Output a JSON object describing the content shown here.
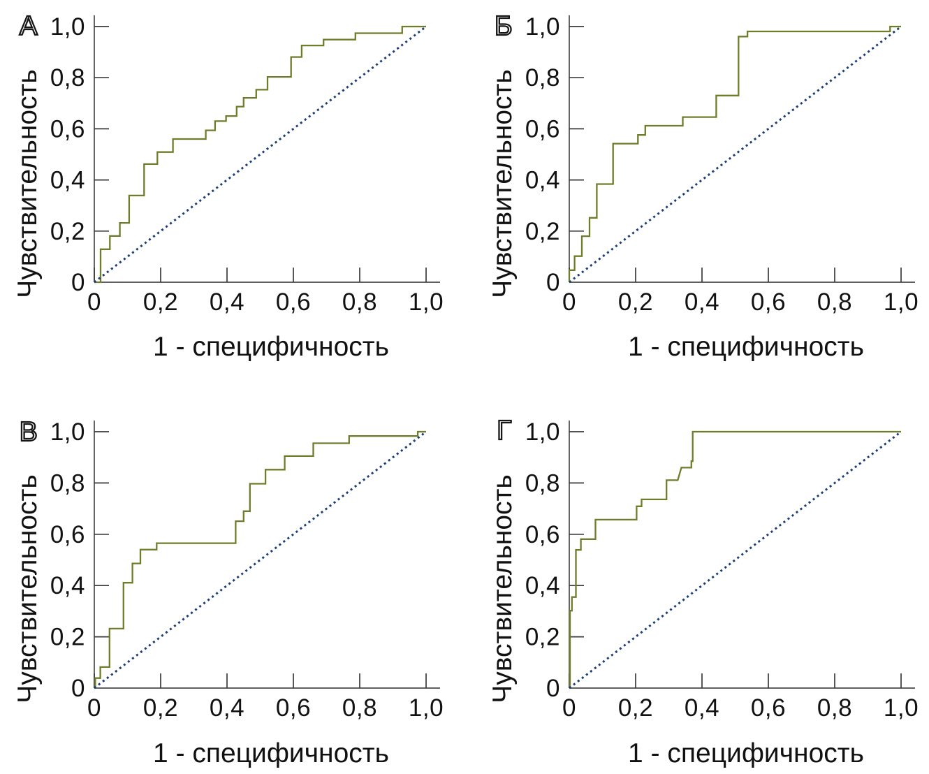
{
  "figure": {
    "description": "Four ROC curve panels in a 2x2 grid, each with a stepped ROC curve and a dotted diagonal reference line",
    "background": "#ffffff"
  },
  "colors": {
    "roc_curve": "#6e7d2a",
    "reference_line": "#1c3e76",
    "axis_line": "#4a4a4a",
    "tick_mark": "#3a3a3a",
    "text": "#111111"
  },
  "panels": [
    {
      "letter": "А",
      "x_label": "1 - специфичность",
      "y_label": "Чувствительность"
    },
    {
      "letter": "Б",
      "x_label": "1 - специфичность",
      "y_label": "Чувствительность"
    },
    {
      "letter": "В",
      "x_label": "1 - специфичность",
      "y_label": "Чувствительность"
    },
    {
      "letter": "Г",
      "x_label": "1 - специфичность",
      "y_label": "Чувствительность"
    }
  ],
  "chart_data": [
    {
      "panel": "А",
      "type": "line",
      "subtype": "roc-step",
      "xlabel": "1 - специфичность",
      "ylabel": "Чувствительность",
      "xlim": [
        0,
        1
      ],
      "ylim": [
        0,
        1
      ],
      "xticks": [
        0,
        0.2,
        0.4,
        0.6,
        0.8,
        1.0
      ],
      "yticks": [
        0,
        0.2,
        0.4,
        0.6,
        0.8,
        1.0
      ],
      "xtick_labels": [
        "0",
        "0,2",
        "0,4",
        "0,6",
        "0,8",
        "1,0"
      ],
      "ytick_labels": [
        "0",
        "0,2",
        "0,4",
        "0,6",
        "0,8",
        "1,0"
      ],
      "grid": false,
      "legend": false,
      "series": [
        {
          "name": "roc-curve",
          "style": "solid",
          "points": [
            [
              0,
              0
            ],
            [
              0.019,
              0
            ],
            [
              0.019,
              0.129
            ],
            [
              0.047,
              0.129
            ],
            [
              0.047,
              0.181
            ],
            [
              0.077,
              0.181
            ],
            [
              0.077,
              0.232
            ],
            [
              0.105,
              0.232
            ],
            [
              0.105,
              0.339
            ],
            [
              0.15,
              0.339
            ],
            [
              0.15,
              0.462
            ],
            [
              0.19,
              0.462
            ],
            [
              0.19,
              0.509
            ],
            [
              0.237,
              0.509
            ],
            [
              0.237,
              0.56
            ],
            [
              0.336,
              0.56
            ],
            [
              0.336,
              0.594
            ],
            [
              0.364,
              0.594
            ],
            [
              0.364,
              0.63
            ],
            [
              0.397,
              0.63
            ],
            [
              0.397,
              0.65
            ],
            [
              0.429,
              0.65
            ],
            [
              0.429,
              0.687
            ],
            [
              0.45,
              0.687
            ],
            [
              0.45,
              0.721
            ],
            [
              0.488,
              0.721
            ],
            [
              0.488,
              0.753
            ],
            [
              0.522,
              0.753
            ],
            [
              0.522,
              0.803
            ],
            [
              0.593,
              0.803
            ],
            [
              0.593,
              0.881
            ],
            [
              0.625,
              0.881
            ],
            [
              0.625,
              0.926
            ],
            [
              0.691,
              0.926
            ],
            [
              0.691,
              0.949
            ],
            [
              0.787,
              0.949
            ],
            [
              0.787,
              0.974
            ],
            [
              0.928,
              0.974
            ],
            [
              0.928,
              1.0
            ],
            [
              1.0,
              1.0
            ]
          ]
        },
        {
          "name": "reference-diagonal",
          "style": "dotted",
          "points": [
            [
              0,
              0
            ],
            [
              1,
              1
            ]
          ]
        }
      ]
    },
    {
      "panel": "Б",
      "type": "line",
      "subtype": "roc-step",
      "xlabel": "1 - специфичность",
      "ylabel": "Чувствительность",
      "xlim": [
        0,
        1
      ],
      "ylim": [
        0,
        1
      ],
      "xticks": [
        0,
        0.2,
        0.4,
        0.6,
        0.8,
        1.0
      ],
      "yticks": [
        0,
        0.2,
        0.4,
        0.6,
        0.8,
        1.0
      ],
      "xtick_labels": [
        "0",
        "0,2",
        "0,4",
        "0,6",
        "0,8",
        "1,0"
      ],
      "ytick_labels": [
        "0",
        "0,2",
        "0,4",
        "0,6",
        "0,8",
        "1,0"
      ],
      "grid": false,
      "legend": false,
      "series": [
        {
          "name": "roc-curve",
          "style": "solid",
          "points": [
            [
              0,
              0
            ],
            [
              0,
              0.047
            ],
            [
              0.016,
              0.047
            ],
            [
              0.016,
              0.102
            ],
            [
              0.038,
              0.102
            ],
            [
              0.038,
              0.18
            ],
            [
              0.061,
              0.18
            ],
            [
              0.061,
              0.252
            ],
            [
              0.083,
              0.252
            ],
            [
              0.083,
              0.384
            ],
            [
              0.132,
              0.384
            ],
            [
              0.132,
              0.542
            ],
            [
              0.207,
              0.542
            ],
            [
              0.207,
              0.576
            ],
            [
              0.229,
              0.576
            ],
            [
              0.229,
              0.612
            ],
            [
              0.342,
              0.612
            ],
            [
              0.342,
              0.646
            ],
            [
              0.443,
              0.646
            ],
            [
              0.443,
              0.73
            ],
            [
              0.51,
              0.73
            ],
            [
              0.51,
              0.961
            ],
            [
              0.537,
              0.961
            ],
            [
              0.537,
              0.981
            ],
            [
              0.967,
              0.981
            ],
            [
              0.967,
              1.0
            ],
            [
              1.0,
              1.0
            ]
          ]
        },
        {
          "name": "reference-diagonal",
          "style": "dotted",
          "points": [
            [
              0,
              0
            ],
            [
              1,
              1
            ]
          ]
        }
      ]
    },
    {
      "panel": "В",
      "type": "line",
      "subtype": "roc-step",
      "xlabel": "1 - специфичность",
      "ylabel": "Чувствительность",
      "xlim": [
        0,
        1
      ],
      "ylim": [
        0,
        1
      ],
      "xticks": [
        0,
        0.2,
        0.4,
        0.6,
        0.8,
        1.0
      ],
      "yticks": [
        0,
        0.2,
        0.4,
        0.6,
        0.8,
        1.0
      ],
      "xtick_labels": [
        "0",
        "0,2",
        "0,4",
        "0,6",
        "0,8",
        "1,0"
      ],
      "ytick_labels": [
        "0",
        "0,2",
        "0,4",
        "0,6",
        "0,8",
        "1,0"
      ],
      "grid": false,
      "legend": false,
      "series": [
        {
          "name": "roc-curve",
          "style": "solid",
          "points": [
            [
              0,
              0
            ],
            [
              0.003,
              0
            ],
            [
              0.003,
              0.039
            ],
            [
              0.018,
              0.039
            ],
            [
              0.018,
              0.082
            ],
            [
              0.046,
              0.082
            ],
            [
              0.046,
              0.232
            ],
            [
              0.088,
              0.232
            ],
            [
              0.088,
              0.411
            ],
            [
              0.115,
              0.411
            ],
            [
              0.115,
              0.486
            ],
            [
              0.139,
              0.486
            ],
            [
              0.139,
              0.54
            ],
            [
              0.188,
              0.54
            ],
            [
              0.188,
              0.565
            ],
            [
              0.426,
              0.565
            ],
            [
              0.426,
              0.651
            ],
            [
              0.45,
              0.651
            ],
            [
              0.45,
              0.69
            ],
            [
              0.469,
              0.69
            ],
            [
              0.469,
              0.797
            ],
            [
              0.516,
              0.797
            ],
            [
              0.516,
              0.852
            ],
            [
              0.574,
              0.852
            ],
            [
              0.574,
              0.905
            ],
            [
              0.66,
              0.905
            ],
            [
              0.66,
              0.955
            ],
            [
              0.768,
              0.955
            ],
            [
              0.768,
              0.983
            ],
            [
              0.975,
              0.983
            ],
            [
              0.975,
              1.0
            ],
            [
              1.0,
              1.0
            ]
          ]
        },
        {
          "name": "reference-diagonal",
          "style": "dotted",
          "points": [
            [
              0,
              0
            ],
            [
              1,
              1
            ]
          ]
        }
      ]
    },
    {
      "panel": "Г",
      "type": "line",
      "subtype": "roc-step",
      "xlabel": "1 - специфичность",
      "ylabel": "Чувствительность",
      "xlim": [
        0,
        1
      ],
      "ylim": [
        0,
        1
      ],
      "xticks": [
        0,
        0.2,
        0.4,
        0.6,
        0.8,
        1.0
      ],
      "yticks": [
        0,
        0.2,
        0.4,
        0.6,
        0.8,
        1.0
      ],
      "xtick_labels": [
        "0",
        "0,2",
        "0,4",
        "0,6",
        "0,8",
        "1,0"
      ],
      "ytick_labels": [
        "0",
        "0,2",
        "0,4",
        "0,6",
        "0,8",
        "1,0"
      ],
      "grid": false,
      "legend": false,
      "series": [
        {
          "name": "roc-curve",
          "style": "solid",
          "points": [
            [
              0,
              0
            ],
            [
              0.002,
              0
            ],
            [
              0.002,
              0.302
            ],
            [
              0.008,
              0.302
            ],
            [
              0.008,
              0.355
            ],
            [
              0.02,
              0.355
            ],
            [
              0.02,
              0.539
            ],
            [
              0.035,
              0.539
            ],
            [
              0.035,
              0.581
            ],
            [
              0.079,
              0.581
            ],
            [
              0.079,
              0.657
            ],
            [
              0.203,
              0.657
            ],
            [
              0.203,
              0.709
            ],
            [
              0.218,
              0.709
            ],
            [
              0.218,
              0.736
            ],
            [
              0.293,
              0.736
            ],
            [
              0.293,
              0.811
            ],
            [
              0.327,
              0.811
            ],
            [
              0.338,
              0.86
            ],
            [
              0.368,
              0.86
            ],
            [
              0.368,
              0.885
            ],
            [
              0.372,
              0.885
            ],
            [
              0.372,
              1.0
            ],
            [
              1.0,
              1.0
            ]
          ]
        },
        {
          "name": "reference-diagonal",
          "style": "dotted",
          "points": [
            [
              0,
              0
            ],
            [
              1,
              1
            ]
          ]
        }
      ]
    }
  ]
}
